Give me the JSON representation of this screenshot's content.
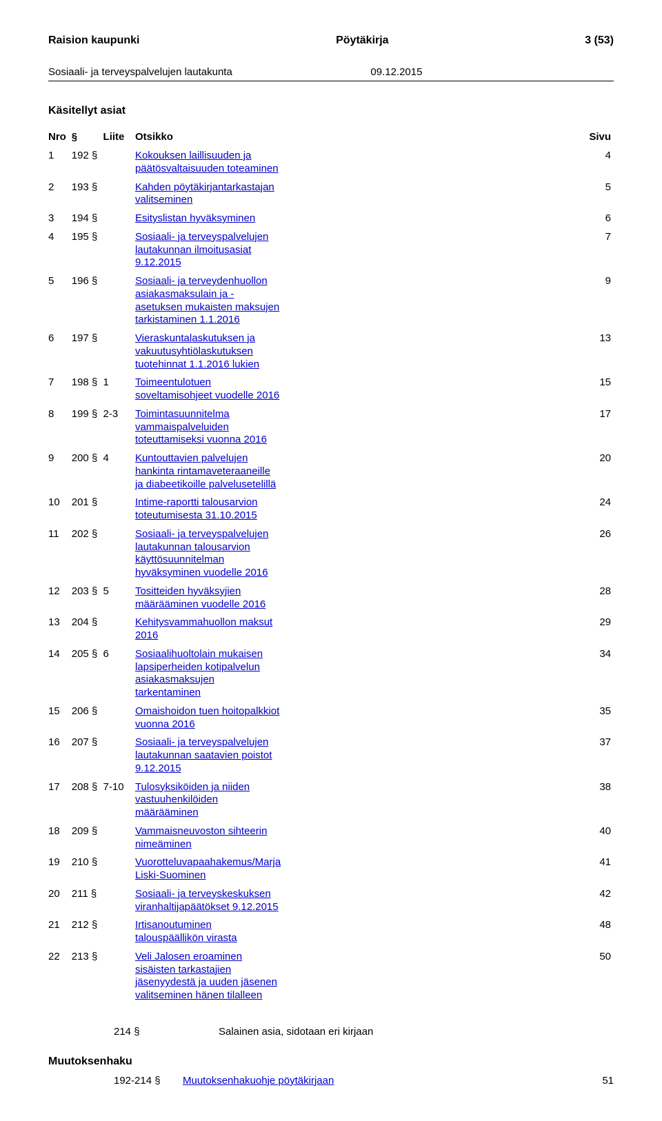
{
  "header": {
    "org": "Raision kaupunki",
    "doc": "Pöytäkirja",
    "pagecount": "3 (53)"
  },
  "subheader": {
    "board": "Sosiaali- ja terveyspalvelujen lautakunta",
    "date": "09.12.2015"
  },
  "section_title": "Käsitellyt asiat",
  "columns": {
    "nro": "Nro",
    "section": "§",
    "liite": "Liite",
    "otsikko": "Otsikko",
    "sivu": "Sivu"
  },
  "rows": [
    {
      "n": "1",
      "s": "192 §",
      "l": "",
      "t": "Kokouksen laillisuuden ja päätösvaltaisuuden toteaminen",
      "p": "4"
    },
    {
      "n": "2",
      "s": "193 §",
      "l": "",
      "t": "Kahden pöytäkirjantarkastajan valitseminen",
      "p": "5"
    },
    {
      "n": "3",
      "s": "194 §",
      "l": "",
      "t": "Esityslistan hyväksyminen",
      "p": "6"
    },
    {
      "n": "4",
      "s": "195 §",
      "l": "",
      "t": "Sosiaali- ja terveyspalvelujen lautakunnan ilmoitusasiat 9.12.2015",
      "p": "7"
    },
    {
      "n": "5",
      "s": "196 §",
      "l": "",
      "t": "Sosiaali- ja terveydenhuollon asiakasmaksulain ja -asetuksen mukaisten maksujen tarkistaminen 1.1.2016",
      "p": "9"
    },
    {
      "n": "6",
      "s": "197 §",
      "l": "",
      "t": "Vieraskuntalaskutuksen ja vakuutusyhtiölaskutuksen tuotehinnat 1.1.2016 lukien",
      "p": "13"
    },
    {
      "n": "7",
      "s": "198 §",
      "l": "1",
      "t": "Toimeentulotuen soveltamisohjeet vuodelle 2016",
      "p": "15"
    },
    {
      "n": "8",
      "s": "199 §",
      "l": "2-3",
      "t": "Toimintasuunnitelma vammaispalveluiden toteuttamiseksi vuonna 2016",
      "p": "17"
    },
    {
      "n": "9",
      "s": "200 §",
      "l": "4",
      "t": "Kuntouttavien palvelujen hankinta rintamaveteraaneille ja diabeetikoille palvelusetelillä",
      "p": "20"
    },
    {
      "n": "10",
      "s": "201 §",
      "l": "",
      "t": "Intime-raportti talousarvion toteutumisesta 31.10.2015",
      "p": "24"
    },
    {
      "n": "11",
      "s": "202 §",
      "l": "",
      "t": "Sosiaali- ja terveyspalvelujen lautakunnan talousarvion käyttösuunnitelman hyväksyminen vuodelle 2016",
      "p": "26"
    },
    {
      "n": "12",
      "s": "203 §",
      "l": "5",
      "t": "Tositteiden hyväksyjien määrääminen vuodelle 2016",
      "p": "28"
    },
    {
      "n": "13",
      "s": "204 §",
      "l": "",
      "t": "Kehitysvammahuollon maksut 2016",
      "p": "29"
    },
    {
      "n": "14",
      "s": "205 §",
      "l": "6",
      "t": "Sosiaalihuoltolain mukaisen lapsiperheiden kotipalvelun asiakasmaksujen tarkentaminen",
      "p": "34"
    },
    {
      "n": "15",
      "s": "206 §",
      "l": "",
      "t": "Omaishoidon tuen hoitopalkkiot vuonna 2016",
      "p": "35"
    },
    {
      "n": "16",
      "s": "207 §",
      "l": "",
      "t": "Sosiaali- ja terveyspalvelujen lautakunnan saatavien poistot 9.12.2015",
      "p": "37"
    },
    {
      "n": "17",
      "s": "208 §",
      "l": "7-10",
      "t": "Tulosyksiköiden ja niiden vastuuhenkilöiden määrääminen",
      "p": "38"
    },
    {
      "n": "18",
      "s": "209 §",
      "l": "",
      "t": "Vammaisneuvoston sihteerin nimeäminen",
      "p": "40"
    },
    {
      "n": "19",
      "s": "210 §",
      "l": "",
      "t": "Vuorotteluvapaahakemus/Marja Liski-Suominen",
      "p": "41"
    },
    {
      "n": "20",
      "s": "211 §",
      "l": "",
      "t": "Sosiaali- ja terveyskeskuksen viranhaltijapäätökset 9.12.2015",
      "p": "42"
    },
    {
      "n": "21",
      "s": "212 §",
      "l": "",
      "t": "Irtisanoutuminen talouspäällikön virasta",
      "p": "48"
    },
    {
      "n": "22",
      "s": "213 §",
      "l": "",
      "t": "Veli Jalosen eroaminen sisäisten tarkastajien jäsenyydestä ja uuden jäsenen valitseminen hänen tilalleen",
      "p": "50"
    }
  ],
  "footer_item": {
    "s": "214 §",
    "t": "Salainen asia, sidotaan eri kirjaan"
  },
  "muutoksenhaku": {
    "title": "Muutoksenhaku",
    "range": "192-214 §",
    "link": "Muutoksenhakuohje pöytäkirjaan",
    "page": "51"
  },
  "colors": {
    "text": "#000000",
    "link": "#0000cc",
    "bg": "#ffffff"
  }
}
